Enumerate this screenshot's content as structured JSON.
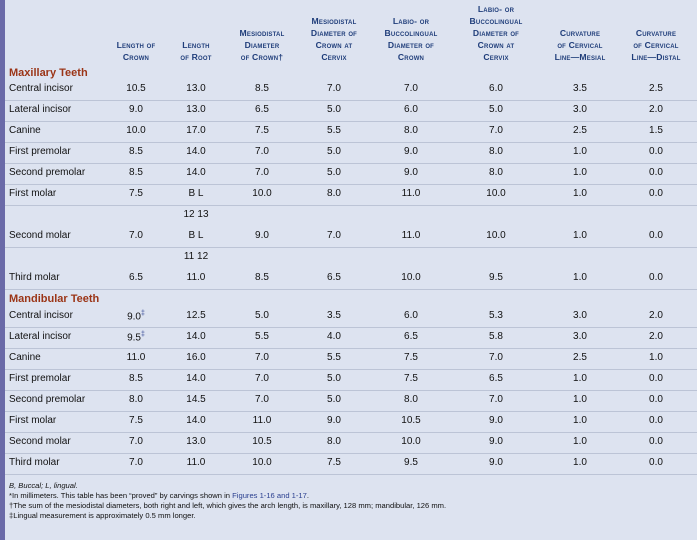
{
  "headers": [
    [
      "Length of",
      "Crown"
    ],
    [
      "Length",
      "of Root"
    ],
    [
      "Mesiodistal",
      "Diameter",
      "of Crown†"
    ],
    [
      "Mesiodistal",
      "Diameter of",
      "Crown at",
      "Cervix"
    ],
    [
      "Labio- or",
      "Buccolingual",
      "Diameter of",
      "Crown"
    ],
    [
      "Labio- or",
      "Buccolingual",
      "Diameter of",
      "Crown at",
      "Cervix"
    ],
    [
      "Curvature",
      "of Cervical",
      "Line—Mesial"
    ],
    [
      "Curvature",
      "of Cervical",
      "Line—Distal"
    ]
  ],
  "sections": {
    "maxillary": "Maxillary Teeth",
    "mandibular": "Mandibular Teeth"
  },
  "maxillary_rows": [
    {
      "name": "Central incisor",
      "vals": [
        "10.5",
        "13.0",
        "8.5",
        "7.0",
        "7.0",
        "6.0",
        "3.5",
        "2.5"
      ]
    },
    {
      "name": "Lateral incisor",
      "vals": [
        "9.0",
        "13.0",
        "6.5",
        "5.0",
        "6.0",
        "5.0",
        "3.0",
        "2.0"
      ]
    },
    {
      "name": "Canine",
      "vals": [
        "10.0",
        "17.0",
        "7.5",
        "5.5",
        "8.0",
        "7.0",
        "2.5",
        "1.5"
      ]
    },
    {
      "name": "First premolar",
      "vals": [
        "8.5",
        "14.0",
        "7.0",
        "5.0",
        "9.0",
        "8.0",
        "1.0",
        "0.0"
      ]
    },
    {
      "name": "Second premolar",
      "vals": [
        "8.5",
        "14.0",
        "7.0",
        "5.0",
        "9.0",
        "8.0",
        "1.0",
        "0.0"
      ]
    },
    {
      "name": "First molar",
      "vals": [
        "7.5",
        "B   L",
        "10.0",
        "8.0",
        "11.0",
        "10.0",
        "1.0",
        "0.0"
      ],
      "sub": "12   13"
    },
    {
      "name": "Second molar",
      "vals": [
        "7.0",
        "B   L",
        "9.0",
        "7.0",
        "11.0",
        "10.0",
        "1.0",
        "0.0"
      ],
      "sub": "11   12"
    },
    {
      "name": "Third molar",
      "vals": [
        "6.5",
        "11.0",
        "8.5",
        "6.5",
        "10.0",
        "9.5",
        "1.0",
        "0.0"
      ]
    }
  ],
  "mandibular_rows": [
    {
      "name": "Central incisor",
      "vals": [
        "9.0",
        "12.5",
        "5.0",
        "3.5",
        "6.0",
        "5.3",
        "3.0",
        "2.0"
      ],
      "mark": "‡"
    },
    {
      "name": "Lateral incisor",
      "vals": [
        "9.5",
        "14.0",
        "5.5",
        "4.0",
        "6.5",
        "5.8",
        "3.0",
        "2.0"
      ],
      "mark": "‡"
    },
    {
      "name": "Canine",
      "vals": [
        "11.0",
        "16.0",
        "7.0",
        "5.5",
        "7.5",
        "7.0",
        "2.5",
        "1.0"
      ]
    },
    {
      "name": "First premolar",
      "vals": [
        "8.5",
        "14.0",
        "7.0",
        "5.0",
        "7.5",
        "6.5",
        "1.0",
        "0.0"
      ]
    },
    {
      "name": "Second premolar",
      "vals": [
        "8.0",
        "14.5",
        "7.0",
        "5.0",
        "8.0",
        "7.0",
        "1.0",
        "0.0"
      ]
    },
    {
      "name": "First molar",
      "vals": [
        "7.5",
        "14.0",
        "11.0",
        "9.0",
        "10.5",
        "9.0",
        "1.0",
        "0.0"
      ]
    },
    {
      "name": "Second molar",
      "vals": [
        "7.0",
        "13.0",
        "10.5",
        "8.0",
        "10.0",
        "9.0",
        "1.0",
        "0.0"
      ]
    },
    {
      "name": "Third molar",
      "vals": [
        "7.0",
        "11.0",
        "10.0",
        "7.5",
        "9.5",
        "9.0",
        "1.0",
        "0.0"
      ]
    }
  ],
  "footnotes": {
    "abbrev": "B, Buccal; L, lingual.",
    "note1_pre": "*In millimeters. This table has been “proved” by carvings shown in ",
    "note1_link": "Figures 1-16 and 1-17",
    "note1_post": ".",
    "note2": "†The sum of the mesiodistal diameters, both right and left, which gives the arch length, is maxillary, 128 mm; mandibular, 126 mm.",
    "note3": "‡Lingual measurement is approximately 0.5 mm longer."
  },
  "colors": {
    "heading": "#1f3d7a",
    "section": "#9b3517",
    "background": "#dde3f0",
    "sidebar": "#6a6aa8"
  }
}
